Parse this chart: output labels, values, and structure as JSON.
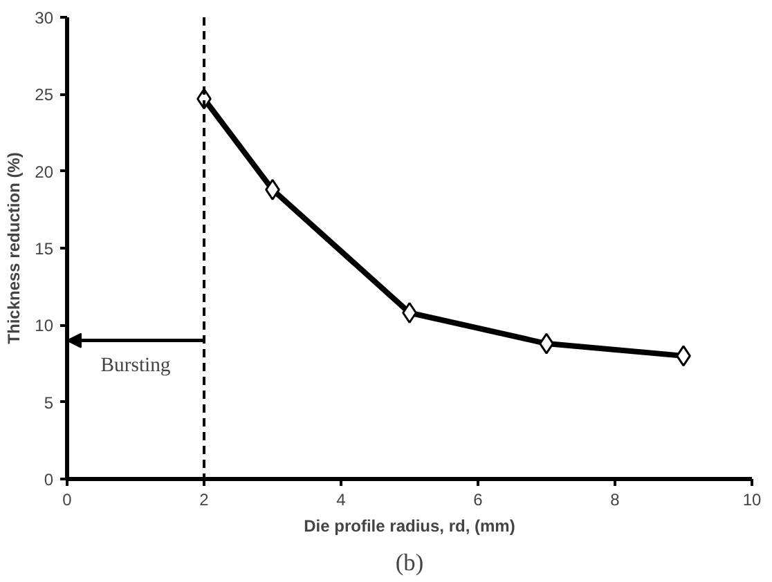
{
  "chart_data": {
    "type": "line",
    "xlabel": "Die profile radius, rd, (mm)",
    "ylabel": "Thickness reduction (%)",
    "x": [
      2,
      3,
      5,
      7,
      9
    ],
    "series": [
      {
        "color": "#000000",
        "values": [
          24.7,
          18.8,
          10.8,
          8.8,
          8.0
        ]
      }
    ],
    "xlim": [
      0,
      10
    ],
    "xticks": [
      0,
      2,
      4,
      6,
      8,
      10
    ],
    "ylim": [
      0,
      30
    ],
    "yticks": [
      0,
      5,
      10,
      15,
      20,
      25,
      30
    ],
    "grid": false,
    "marker": "diamond",
    "line_style": "solid",
    "ref_lines": [
      {
        "axis": "x",
        "value": 2,
        "label": null,
        "color": "#000000",
        "line_style": "dashed"
      }
    ],
    "annotations": [
      {
        "text": "Bursting",
        "x": 2,
        "y": 9
      },
      "(b)"
    ]
  }
}
